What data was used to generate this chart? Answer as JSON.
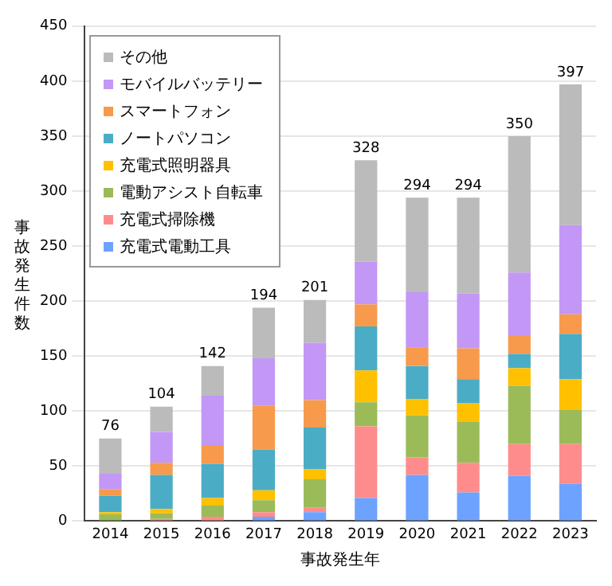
{
  "chart_data": {
    "type": "bar",
    "stacked": true,
    "xlabel": "事故発生年",
    "ylabel": "事故発生件数",
    "categories": [
      "2014",
      "2015",
      "2016",
      "2017",
      "2018",
      "2019",
      "2020",
      "2021",
      "2022",
      "2023"
    ],
    "series": [
      {
        "name": "充電式電動工具",
        "color": "#6ea2ff",
        "values": [
          0,
          0,
          null,
          4,
          8,
          21,
          42,
          26,
          41,
          34
        ]
      },
      {
        "name": "充電式掃除機",
        "color": "#ff8c8c",
        "values": [
          null,
          2,
          4,
          4,
          4,
          65,
          16,
          27,
          29,
          36
        ]
      },
      {
        "name": "電動アシスト自転車",
        "color": "#9bbb59",
        "values": [
          6,
          5,
          10,
          11,
          26,
          22,
          38,
          37,
          53,
          31
        ]
      },
      {
        "name": "充電式照明器具",
        "color": "#ffc000",
        "values": [
          2,
          4,
          7,
          9,
          9,
          29,
          15,
          17,
          16,
          28
        ]
      },
      {
        "name": "ノートパソコン",
        "color": "#4bacc6",
        "values": [
          15,
          31,
          31,
          37,
          38,
          40,
          30,
          22,
          13,
          41
        ]
      },
      {
        "name": "スマートフォン",
        "color": "#f79a4b",
        "values": [
          6,
          11,
          17,
          40,
          25,
          20,
          17,
          28,
          17,
          18
        ]
      },
      {
        "name": "モバイルバッテリー",
        "color": "#c397f5",
        "values": [
          14,
          28,
          45,
          43,
          52,
          39,
          50,
          50,
          57,
          81
        ]
      },
      {
        "name": "その他",
        "color": "#bbbbbb",
        "values": [
          32,
          23,
          27,
          46,
          39,
          92,
          86,
          87,
          124,
          128
        ]
      }
    ],
    "totals": [
      "76",
      "104",
      "142",
      "194",
      "201",
      "328",
      "294",
      "294",
      "350",
      "397"
    ],
    "ylim": [
      0,
      450
    ],
    "yticks": [
      0,
      50,
      100,
      150,
      200,
      250,
      300,
      350,
      400,
      450
    ],
    "grid": "y",
    "legend": "top left"
  }
}
